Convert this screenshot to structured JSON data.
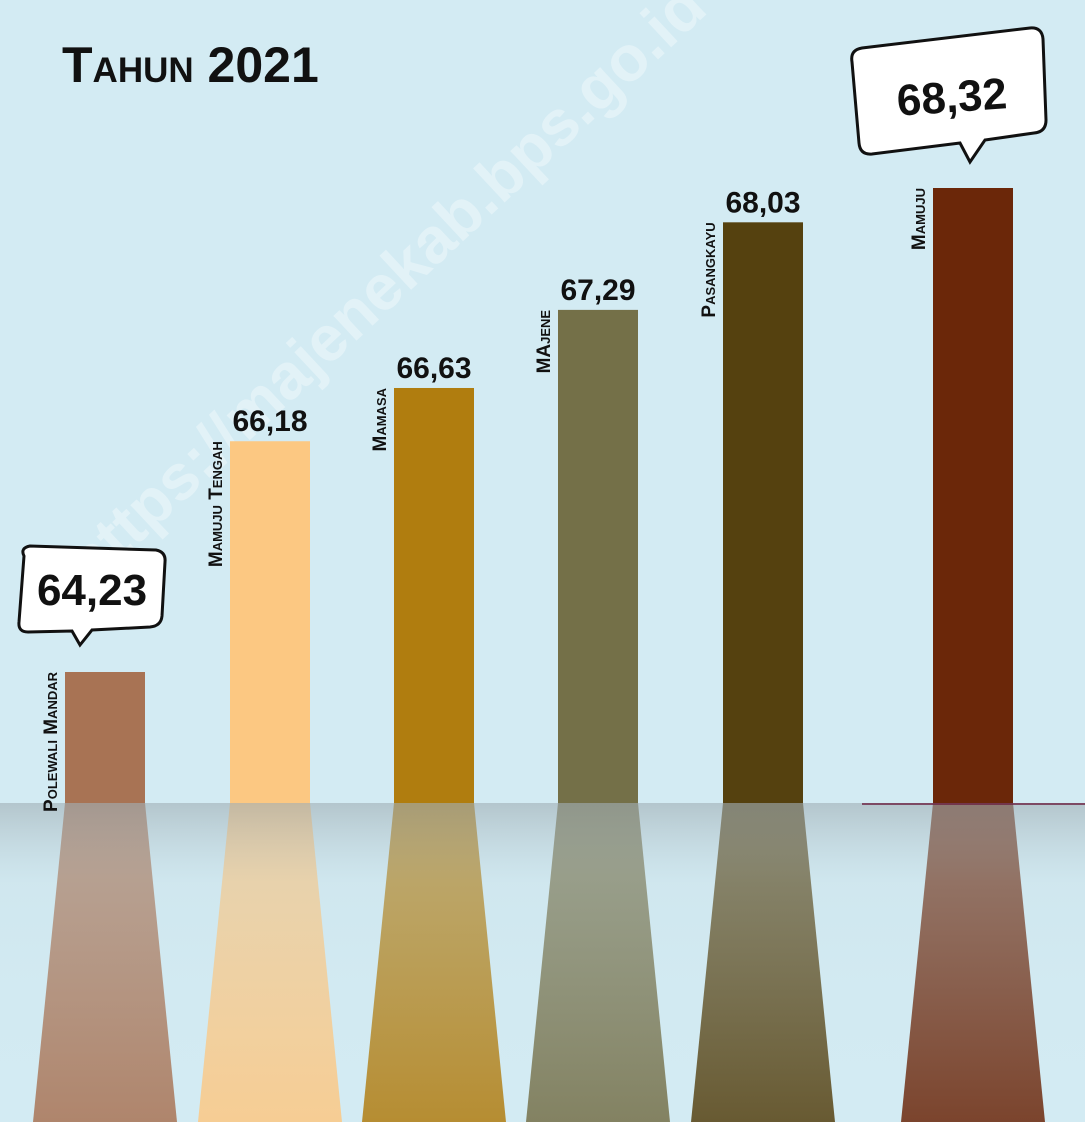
{
  "chart_data": {
    "type": "bar",
    "title": "Tahun 2021",
    "watermark": "https://majenekab.bps.go.id",
    "categories": [
      "Polewali Mandar",
      "Mamuju Tengah",
      "Mamasa",
      "MAjene",
      "Pasangkayu",
      "Mamuju"
    ],
    "values": [
      64.23,
      66.18,
      66.63,
      67.29,
      68.03,
      68.32
    ],
    "value_labels": [
      "64,23",
      "66,18",
      "66,63",
      "67,29",
      "68,03",
      "68,32"
    ],
    "colors": [
      "#a87354",
      "#fcc882",
      "#b07d0f",
      "#747048",
      "#55410f",
      "#6b2709"
    ]
  }
}
